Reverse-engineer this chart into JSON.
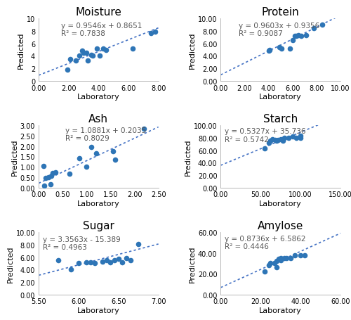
{
  "subplots": [
    {
      "title": "Moisture",
      "equation": "y = 0.9546x + 0.8651",
      "r2": "R² = 0.7838",
      "slope": 0.9546,
      "intercept": 0.8651,
      "xlabel": "Laboratory",
      "ylabel": "Predicted",
      "xlim": [
        0.0,
        8.0
      ],
      "ylim": [
        0,
        10
      ],
      "xticks": [
        0.0,
        2.0,
        4.0,
        6.0,
        8.0
      ],
      "yticks": [
        0,
        2,
        4,
        6,
        8,
        10
      ],
      "xtick_labels": [
        "0.00",
        "2.00",
        "4.00",
        "6.00",
        "8.00"
      ],
      "ytick_labels": [
        "0",
        "2",
        "4",
        "6",
        "8",
        "10"
      ],
      "scatter_x": [
        1.9,
        2.1,
        2.5,
        2.7,
        2.9,
        3.0,
        3.2,
        3.3,
        3.5,
        3.6,
        3.9,
        4.1,
        4.3,
        4.5,
        6.3,
        7.5,
        7.8
      ],
      "scatter_y": [
        1.8,
        3.5,
        3.2,
        4.0,
        4.8,
        4.5,
        4.5,
        3.3,
        4.2,
        4.0,
        5.2,
        4.0,
        5.2,
        5.0,
        5.2,
        7.7,
        7.9
      ],
      "eq_x": 1.5,
      "eq_y": 9.5,
      "eq_ha": "left"
    },
    {
      "title": "Protein",
      "equation": "y = 0.9603x + 0.9356",
      "r2": "R² = 0.9087",
      "slope": 0.9603,
      "intercept": 0.9356,
      "xlabel": "Laboratory",
      "ylabel": "Predicted",
      "xlim": [
        0.0,
        10.0
      ],
      "ylim": [
        0.0,
        10.0
      ],
      "xticks": [
        0.0,
        2.0,
        4.0,
        6.0,
        8.0,
        10.0
      ],
      "yticks": [
        0.0,
        2.0,
        4.0,
        6.0,
        8.0,
        10.0
      ],
      "xtick_labels": [
        "0.00",
        "2.00",
        "4.00",
        "6.00",
        "8.00",
        "10.00"
      ],
      "ytick_labels": [
        "0.00",
        "2.00",
        "4.00",
        "6.00",
        "8.00",
        "10.00"
      ],
      "scatter_x": [
        4.0,
        4.1,
        4.9,
        5.1,
        5.8,
        6.0,
        6.2,
        6.3,
        6.5,
        6.7,
        7.1,
        7.8,
        8.5
      ],
      "scatter_y": [
        4.8,
        5.0,
        5.4,
        5.2,
        5.2,
        6.5,
        7.2,
        7.2,
        7.3,
        7.2,
        7.3,
        8.5,
        9.0
      ],
      "eq_x": 1.5,
      "eq_y": 9.5,
      "eq_ha": "left"
    },
    {
      "title": "Ash",
      "equation": "y = 1.0881x + 0.2035",
      "r2": "R² = 0.8029",
      "slope": 1.0881,
      "intercept": 0.2035,
      "xlabel": "Laboratory",
      "ylabel": "Predicted",
      "xlim": [
        0.0,
        2.5
      ],
      "ylim": [
        0.0,
        3.0
      ],
      "xticks": [
        0.0,
        0.5,
        1.0,
        1.5,
        2.0,
        2.5
      ],
      "yticks": [
        0.0,
        0.5,
        1.0,
        1.5,
        2.0,
        2.5,
        3.0
      ],
      "xtick_labels": [
        "0.00",
        "0.50",
        "1.00",
        "1.50",
        "2.00",
        "2.50"
      ],
      "ytick_labels": [
        "0.00",
        "0.50",
        "1.00",
        "1.50",
        "2.00",
        "2.50",
        "3.00"
      ],
      "scatter_x": [
        0.1,
        0.12,
        0.15,
        0.2,
        0.25,
        0.27,
        0.3,
        0.35,
        0.65,
        0.85,
        1.0,
        1.1,
        1.2,
        1.55,
        1.6,
        2.2
      ],
      "scatter_y": [
        1.05,
        0.1,
        0.45,
        0.5,
        0.15,
        0.55,
        0.7,
        0.75,
        0.65,
        1.4,
        1.0,
        1.95,
        1.65,
        1.75,
        1.35,
        2.85
      ],
      "eq_x": 0.55,
      "eq_y": 2.95,
      "eq_ha": "left"
    },
    {
      "title": "Starch",
      "equation": "y = 0.5327x + 35.736",
      "r2": "R² = 0.5742",
      "slope": 0.5327,
      "intercept": 35.736,
      "xlabel": "Laboratory",
      "ylabel": "Predicted",
      "xlim": [
        0.0,
        150.0
      ],
      "ylim": [
        0.0,
        100.0
      ],
      "xticks": [
        0.0,
        50.0,
        100.0,
        150.0
      ],
      "yticks": [
        0.0,
        20.0,
        40.0,
        60.0,
        80.0,
        100.0
      ],
      "xtick_labels": [
        "0.00",
        "50.00",
        "100.00",
        "150.00"
      ],
      "ytick_labels": [
        "0.00",
        "20.00",
        "40.00",
        "60.00",
        "80.00",
        "100.00"
      ],
      "scatter_x": [
        55,
        60,
        62,
        65,
        68,
        70,
        72,
        75,
        78,
        80,
        85,
        90,
        95,
        100,
        100
      ],
      "scatter_y": [
        63,
        72,
        75,
        78,
        77,
        75,
        76,
        78,
        75,
        80,
        80,
        82,
        80,
        83,
        80
      ],
      "eq_x": 5.0,
      "eq_y": 97.0,
      "eq_ha": "left"
    },
    {
      "title": "Sugar",
      "equation": "y = 3.3563x - 15.389",
      "r2": "R² = 0.4963",
      "slope": 3.3563,
      "intercept": -15.389,
      "xlabel": "Laboratory",
      "ylabel": "Predicted",
      "xlim": [
        5.5,
        7.0
      ],
      "ylim": [
        0.0,
        10.0
      ],
      "xticks": [
        5.5,
        6.0,
        6.5,
        7.0
      ],
      "yticks": [
        0.0,
        2.0,
        4.0,
        6.0,
        8.0,
        10.0
      ],
      "xtick_labels": [
        "5.50",
        "6.00",
        "6.50",
        "7.00"
      ],
      "ytick_labels": [
        "0.00",
        "2.00",
        "4.00",
        "6.00",
        "8.00",
        "10.00"
      ],
      "scatter_x": [
        5.75,
        5.9,
        6.0,
        6.1,
        6.15,
        6.2,
        6.3,
        6.35,
        6.4,
        6.45,
        6.5,
        6.55,
        6.6,
        6.65,
        6.75
      ],
      "scatter_y": [
        5.5,
        4.0,
        5.0,
        5.2,
        5.1,
        5.0,
        5.3,
        5.5,
        5.2,
        5.5,
        5.7,
        5.2,
        5.8,
        5.5,
        8.1
      ],
      "eq_x": 5.55,
      "eq_y": 9.5,
      "eq_ha": "left"
    },
    {
      "title": "Amylose",
      "equation": "y = 0.8736x + 6.5862",
      "r2": "R² = 0.4446",
      "slope": 0.8736,
      "intercept": 6.5862,
      "xlabel": "Laboratory",
      "ylabel": "Predicted",
      "xlim": [
        0.0,
        60.0
      ],
      "ylim": [
        0.0,
        60.0
      ],
      "xticks": [
        0.0,
        20.0,
        40.0,
        60.0
      ],
      "yticks": [
        0.0,
        20.0,
        40.0,
        60.0
      ],
      "xtick_labels": [
        "0.00",
        "20.00",
        "40.00",
        "60.00"
      ],
      "ytick_labels": [
        "0.00",
        "20.00",
        "40.00",
        "60.00"
      ],
      "scatter_x": [
        22,
        24,
        25,
        27,
        28,
        28,
        29,
        30,
        30,
        32,
        33,
        35,
        37,
        40,
        42
      ],
      "scatter_y": [
        22,
        28,
        30,
        30,
        26,
        32,
        34,
        33,
        35,
        35,
        35,
        35,
        38,
        38,
        38
      ],
      "eq_x": 2.0,
      "eq_y": 57.5,
      "eq_ha": "left"
    }
  ],
  "dot_color": "#2E75B6",
  "dot_size": 30,
  "line_color": "#4472C4",
  "title_fontsize": 11,
  "axis_label_fontsize": 8,
  "tick_fontsize": 7,
  "eq_fontsize": 7.5
}
